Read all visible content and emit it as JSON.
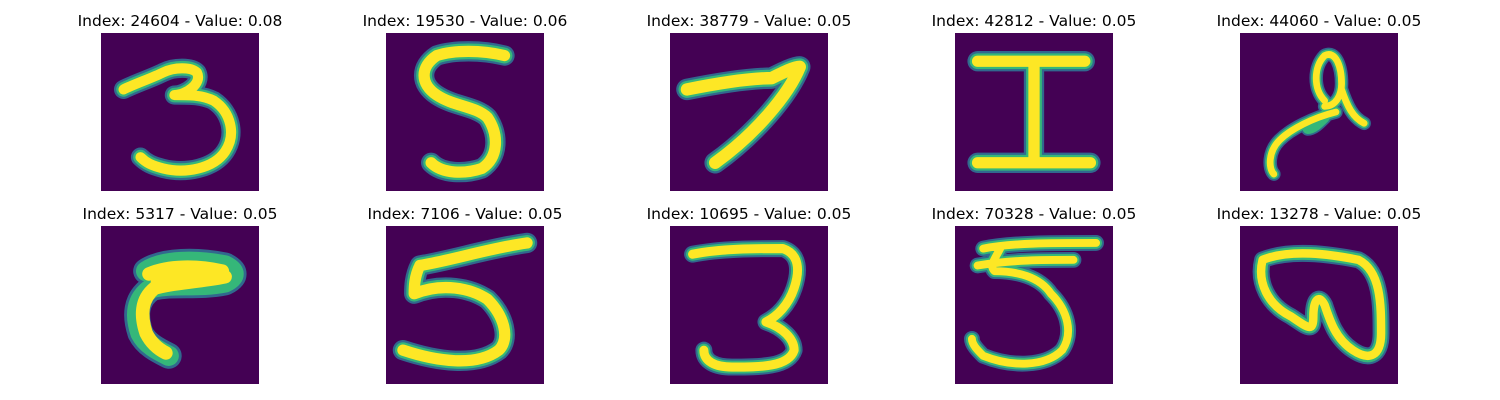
{
  "colors": {
    "background": "#440154",
    "stroke_dark": "#31688e",
    "stroke_mid": "#35b779",
    "stroke_bright": "#fde725"
  },
  "panels": [
    {
      "title": "Index: 24604 - Value: 0.08",
      "digit": "3"
    },
    {
      "title": "Index: 19530 - Value: 0.06",
      "digit": "5"
    },
    {
      "title": "Index: 38779 - Value: 0.05",
      "digit": "7"
    },
    {
      "title": "Index: 42812 - Value: 0.05",
      "digit": "I"
    },
    {
      "title": "Index: 44060 - Value: 0.05",
      "digit": "a"
    },
    {
      "title": "Index: 5317 - Value: 0.05",
      "digit": "hook"
    },
    {
      "title": "Index: 7106 - Value: 0.05",
      "digit": "5"
    },
    {
      "title": "Index: 10695 - Value: 0.05",
      "digit": "3"
    },
    {
      "title": "Index: 70328 - Value: 0.05",
      "digit": "5"
    },
    {
      "title": "Index: 13278 - Value: 0.05",
      "digit": "loop"
    }
  ]
}
